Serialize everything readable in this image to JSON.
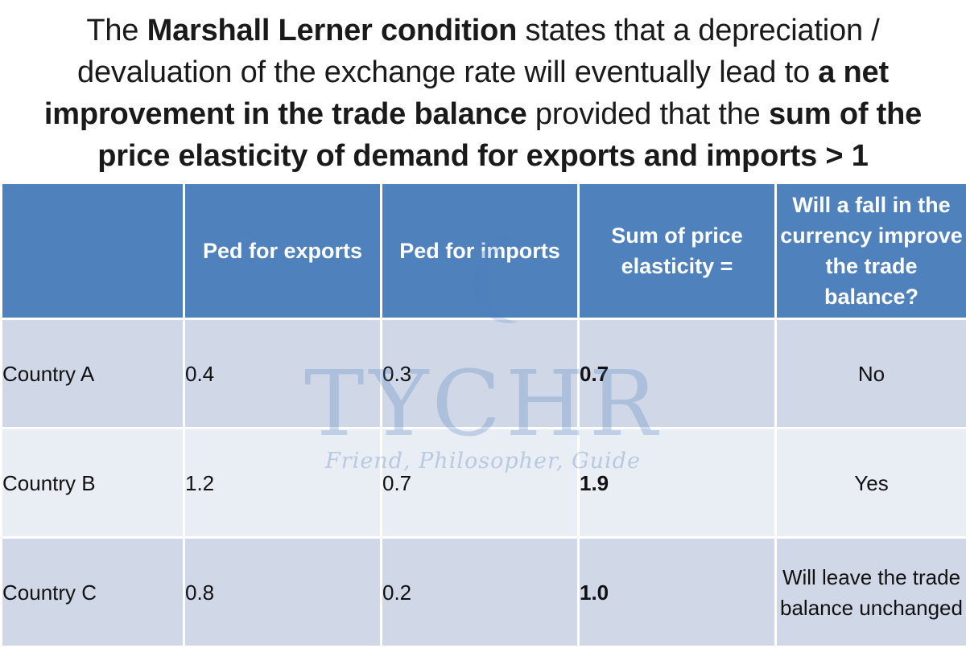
{
  "headline": {
    "p1": "The ",
    "b1": "Marshall Lerner condition",
    "p2": " states that a depreciation / devaluation of the exchange rate will eventually lead to ",
    "b2": "a net improvement in the trade balance",
    "p3": " provided that the ",
    "b3": "sum of the price elasticity of demand for exports and imports > 1"
  },
  "table": {
    "headers": [
      "",
      "Ped for exports",
      "Ped for imports",
      "Sum of price elasticity  =",
      "Will a fall in the currency improve the trade balance?"
    ],
    "rows": [
      {
        "country": "Country A",
        "ped_exports": "0.4",
        "ped_imports": "0.3",
        "sum": "0.7",
        "verdict": "No"
      },
      {
        "country": "Country B",
        "ped_exports": "1.2",
        "ped_imports": "0.7",
        "sum": "1.9",
        "verdict": "Yes"
      },
      {
        "country": "Country C",
        "ped_exports": "0.8",
        "ped_imports": "0.2",
        "sum": "1.0",
        "verdict": "Will leave the trade balance unchanged"
      }
    ]
  },
  "watermark": {
    "brand": "TYCHR",
    "tagline": "Friend, Philosopher, Guide",
    "logo_icon": "tychr-logo-icon"
  },
  "colors": {
    "header_blue": "#4f81bd",
    "row_dark": "#d0d8e8",
    "row_light": "#e9edf4"
  }
}
